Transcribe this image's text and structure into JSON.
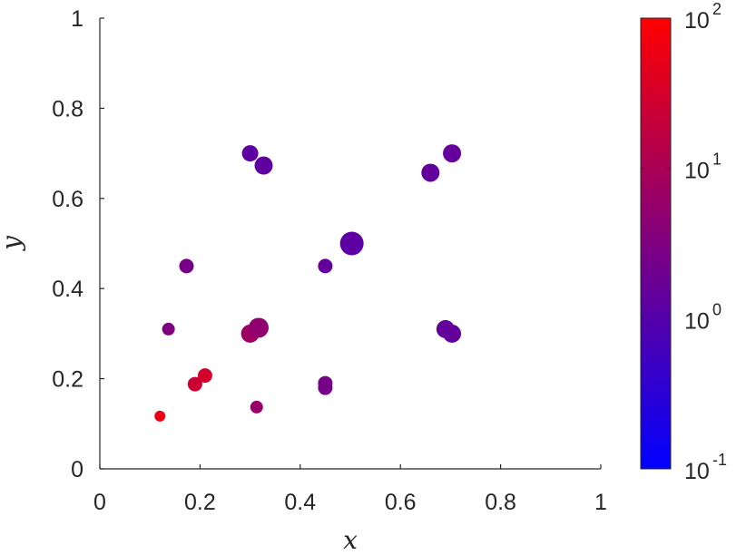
{
  "chart_data": {
    "type": "scatter",
    "title": "",
    "xlabel": "x",
    "ylabel": "y",
    "xlim": [
      0,
      1
    ],
    "ylim": [
      0,
      1
    ],
    "x_ticks": [
      "0",
      "0.2",
      "0.4",
      "0.6",
      "0.8",
      "1"
    ],
    "y_ticks": [
      "0",
      "0.2",
      "0.4",
      "0.6",
      "0.8",
      "1"
    ],
    "grid": false,
    "points": [
      {
        "x": 0.12,
        "y": 0.117,
        "color_value": 60,
        "marker_size": 6
      },
      {
        "x": 0.137,
        "y": 0.31,
        "color_value": 3,
        "marker_size": 7
      },
      {
        "x": 0.173,
        "y": 0.45,
        "color_value": 2.5,
        "marker_size": 8
      },
      {
        "x": 0.19,
        "y": 0.188,
        "color_value": 25,
        "marker_size": 8
      },
      {
        "x": 0.21,
        "y": 0.207,
        "color_value": 30,
        "marker_size": 8
      },
      {
        "x": 0.3,
        "y": 0.7,
        "color_value": 1.3,
        "marker_size": 9
      },
      {
        "x": 0.327,
        "y": 0.673,
        "color_value": 1.3,
        "marker_size": 10
      },
      {
        "x": 0.3,
        "y": 0.3,
        "color_value": 7,
        "marker_size": 10
      },
      {
        "x": 0.317,
        "y": 0.313,
        "color_value": 5,
        "marker_size": 11
      },
      {
        "x": 0.313,
        "y": 0.137,
        "color_value": 6,
        "marker_size": 7
      },
      {
        "x": 0.45,
        "y": 0.45,
        "color_value": 1.5,
        "marker_size": 8
      },
      {
        "x": 0.45,
        "y": 0.19,
        "color_value": 2.5,
        "marker_size": 8
      },
      {
        "x": 0.45,
        "y": 0.18,
        "color_value": 2.5,
        "marker_size": 8
      },
      {
        "x": 0.503,
        "y": 0.5,
        "color_value": 1.2,
        "marker_size": 13
      },
      {
        "x": 0.66,
        "y": 0.657,
        "color_value": 1.5,
        "marker_size": 10
      },
      {
        "x": 0.703,
        "y": 0.7,
        "color_value": 1.5,
        "marker_size": 10
      },
      {
        "x": 0.69,
        "y": 0.31,
        "color_value": 1.5,
        "marker_size": 10
      },
      {
        "x": 0.703,
        "y": 0.3,
        "color_value": 1.5,
        "marker_size": 10
      }
    ],
    "colorbar": {
      "scale": "log",
      "range": [
        0.1,
        100
      ],
      "tick_values": [
        0.1,
        1,
        10,
        100
      ],
      "tick_base": "10",
      "tick_exponents": [
        "-1",
        "0",
        "1",
        "2"
      ],
      "colors": {
        "low": "#0000ff",
        "high": "#ff0000"
      }
    }
  }
}
